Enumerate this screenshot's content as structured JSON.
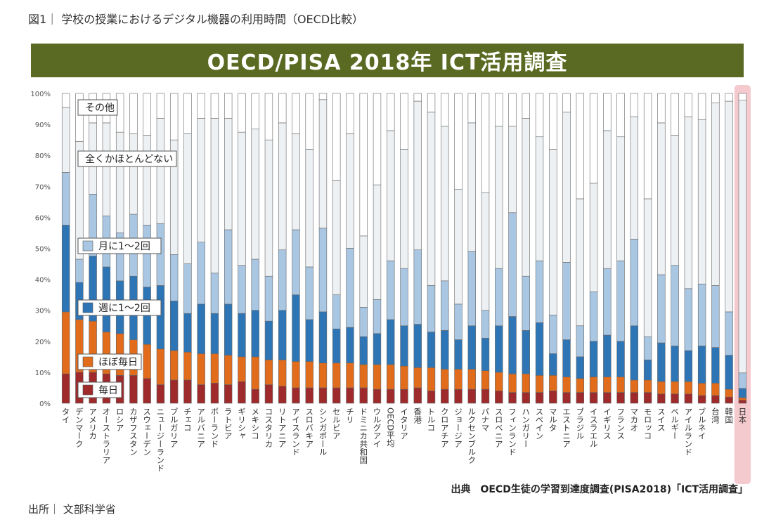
{
  "caption": "図1｜ 学校の授業におけるデジタル機器の利用時間（OECD比較）",
  "banner_title": "OECD/PISA 2018年  ICT活用調査",
  "source_note": "出典　OECD生徒の学習到達度調査(PISA2018)「ICT活用調査」",
  "footer_source": "出所｜ 文部科学省",
  "colors": {
    "daily": "#9e2a2b",
    "almost_daily": "#e06c1c",
    "weekly": "#2e75b6",
    "monthly": "#a9c7e3",
    "never": "#eef1f4",
    "other": "#ffffff",
    "japan_highlight": "#f2b8bd"
  },
  "chart_data": {
    "type": "bar",
    "stacked": true,
    "ylim": [
      0,
      100
    ],
    "yticks": [
      "0%",
      "10%",
      "20%",
      "30%",
      "40%",
      "50%",
      "60%",
      "70%",
      "80%",
      "90%",
      "100%"
    ],
    "highlight": "日本",
    "legend": [
      "その他",
      "全くかほとんどない",
      "月に1～2回",
      "週に1～2回",
      "ほぼ毎日",
      "毎日"
    ],
    "categories": [
      "タイ",
      "デンマーク",
      "アメリカ",
      "オーストラリア",
      "ロシア",
      "カザフスタン",
      "スウェーデン",
      "ニュージーランド",
      "ブルガリア",
      "チェコ",
      "アルバニア",
      "ポーランド",
      "ラトビア",
      "ギリシャ",
      "メキシコ",
      "コスタリカ",
      "リトアニア",
      "アイスランド",
      "スロバキア",
      "シンガポール",
      "セルビア",
      "チリ",
      "ドミニカ共和国",
      "ウルグアイ",
      "OECD平均",
      "イタリア",
      "香港",
      "トルコ",
      "クロアチア",
      "ジョージア",
      "ルクセンブルク",
      "パナマ",
      "スロベニア",
      "フィンランド",
      "ハンガリー",
      "スペイン",
      "マルタ",
      "エストニア",
      "ブラジル",
      "イスラエル",
      "イギリス",
      "フランス",
      "マカオ",
      "モロッコ",
      "スイス",
      "ベルギー",
      "アイルランド",
      "ブルネイ",
      "台湾",
      "韓国",
      "日本"
    ],
    "series": [
      {
        "name": "毎日",
        "values": [
          9.5,
          10,
          10,
          9.5,
          9,
          9,
          8,
          6,
          7.5,
          7.5,
          6,
          6.5,
          6,
          7,
          4.5,
          6,
          5.5,
          5,
          5,
          5,
          5,
          5,
          5,
          4.5,
          4.5,
          4.5,
          5,
          4,
          4.5,
          4.5,
          4.5,
          4.5,
          4,
          3.5,
          3.5,
          3.5,
          4,
          3.5,
          3.5,
          3.5,
          3.5,
          3.5,
          3.5,
          3.5,
          3,
          3,
          3,
          2.5,
          2.5,
          2,
          1
        ]
      },
      {
        "name": "ほぼ毎日",
        "values": [
          20,
          17,
          16.5,
          13.5,
          13.5,
          11.5,
          11,
          11.5,
          9.5,
          9,
          10,
          9.5,
          9.5,
          8,
          10.5,
          8,
          8.5,
          8.5,
          8.5,
          8,
          8,
          8,
          7.5,
          8,
          8,
          7.5,
          6.5,
          7.5,
          6.5,
          6.5,
          6.5,
          6,
          6,
          6,
          6,
          5.5,
          5,
          5,
          4.5,
          5,
          5,
          5,
          4,
          4,
          4,
          4,
          4,
          4,
          4,
          2.5,
          0.8
        ]
      },
      {
        "name": "週に1～2回",
        "values": [
          28,
          12,
          21,
          21,
          17,
          20.5,
          18.5,
          20.5,
          16,
          12.5,
          16,
          13,
          16.5,
          14,
          15,
          12.5,
          16,
          21.5,
          13.5,
          16.5,
          11,
          11.5,
          9,
          10,
          14.5,
          13,
          14,
          11.5,
          12.5,
          9.5,
          14,
          10.5,
          15,
          18.5,
          14,
          17,
          7,
          12,
          7,
          11.5,
          13.5,
          11.5,
          17.5,
          6.5,
          12.5,
          11.5,
          10,
          12,
          11.5,
          11,
          3
        ]
      },
      {
        "name": "月に1～2回",
        "values": [
          17,
          7.5,
          20,
          16.5,
          15.5,
          20,
          20,
          20,
          15,
          16,
          20,
          13,
          24,
          15.5,
          16.5,
          14.5,
          19.5,
          21,
          17,
          27,
          11,
          25.5,
          9.5,
          11,
          19,
          18.5,
          24,
          15,
          16,
          11.5,
          24,
          9,
          18.5,
          33.5,
          17.5,
          20,
          12.5,
          25,
          10,
          16,
          21.5,
          26,
          28,
          7.5,
          22,
          26,
          20,
          20,
          20,
          14,
          5
        ]
      },
      {
        "name": "全くかほとんどない",
        "values": [
          21,
          38,
          23,
          30,
          32.5,
          26,
          29,
          34,
          37,
          42,
          40,
          50,
          36,
          43,
          42,
          44,
          41,
          31,
          38,
          41.5,
          37,
          37,
          23,
          37,
          42,
          38.5,
          48,
          56,
          50,
          37,
          41.5,
          38,
          46,
          28,
          51,
          40,
          53.5,
          48.5,
          41,
          35,
          44.5,
          40,
          39.5,
          44.5,
          49,
          42,
          55.5,
          53,
          59,
          68,
          88
        ]
      },
      {
        "name": "その他",
        "values": [
          4.5,
          15.5,
          9.5,
          9.5,
          12.5,
          13,
          13.5,
          8,
          15,
          13,
          8,
          8,
          8,
          12.5,
          11.5,
          15,
          9.5,
          13,
          18,
          2,
          28,
          13,
          46,
          29.5,
          12,
          18,
          2.5,
          6,
          10.5,
          31,
          9.5,
          32,
          10.5,
          10.5,
          8,
          14,
          18,
          6,
          34,
          29,
          12,
          14,
          7.5,
          34,
          9.5,
          13.5,
          7.5,
          8.5,
          3,
          2.5,
          2.2
        ]
      }
    ]
  }
}
